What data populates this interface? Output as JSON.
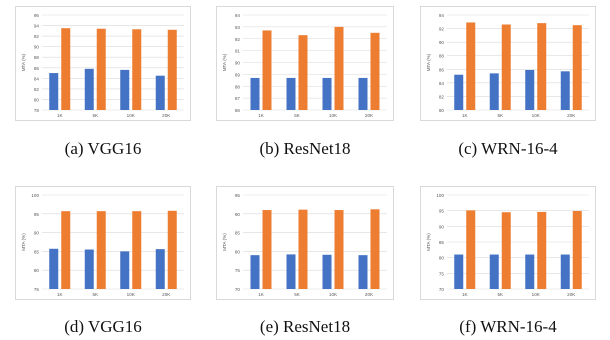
{
  "colors": {
    "series_a": "#4472c4",
    "series_b": "#ed7d31",
    "grid": "#d9d9d9",
    "tick": "#595959"
  },
  "chart_data": [
    {
      "type": "bar",
      "caption": "(a)  VGG16",
      "ylabel": "MTA (%)",
      "categories": [
        "1K",
        "5K",
        "10K",
        "20K"
      ],
      "ylim": [
        78,
        96
      ],
      "yticks": [
        78,
        80,
        82,
        84,
        86,
        88,
        90,
        92,
        94,
        96
      ],
      "series": [
        {
          "values": [
            85.0,
            85.8,
            85.6,
            84.5
          ]
        },
        {
          "values": [
            93.5,
            93.4,
            93.3,
            93.2
          ]
        }
      ]
    },
    {
      "type": "bar",
      "caption": "(b)  ResNet18",
      "ylabel": "MTA (%)",
      "categories": [
        "1K",
        "5K",
        "10K",
        "20K"
      ],
      "ylim": [
        86,
        94
      ],
      "yticks": [
        86,
        87,
        88,
        89,
        90,
        91,
        92,
        93,
        94
      ],
      "series": [
        {
          "values": [
            88.7,
            88.7,
            88.7,
            88.7
          ]
        },
        {
          "values": [
            92.7,
            92.3,
            93.0,
            92.5
          ]
        }
      ]
    },
    {
      "type": "bar",
      "caption": "(c)  WRN-16-4",
      "ylabel": "MTA (%)",
      "categories": [
        "1K",
        "5K",
        "10K",
        "20K"
      ],
      "ylim": [
        80,
        94
      ],
      "yticks": [
        80,
        82,
        84,
        86,
        88,
        90,
        92,
        94
      ],
      "series": [
        {
          "values": [
            85.2,
            85.4,
            85.9,
            85.7
          ]
        },
        {
          "values": [
            92.9,
            92.6,
            92.8,
            92.5
          ]
        }
      ]
    },
    {
      "type": "bar",
      "caption": "(d)  VGG16",
      "ylabel": "MTA (%)",
      "categories": [
        "1K",
        "5K",
        "10K",
        "20K"
      ],
      "ylim": [
        75,
        100
      ],
      "yticks": [
        75,
        80,
        85,
        90,
        95,
        100
      ],
      "series": [
        {
          "values": [
            85.7,
            85.5,
            85.0,
            85.6
          ]
        },
        {
          "values": [
            95.7,
            95.7,
            95.7,
            95.8
          ]
        }
      ]
    },
    {
      "type": "bar",
      "caption": "(e)  ResNet18",
      "ylabel": "MTA (%)",
      "categories": [
        "1K",
        "5K",
        "10K",
        "20K"
      ],
      "ylim": [
        70,
        95
      ],
      "yticks": [
        70,
        75,
        80,
        85,
        90,
        95
      ],
      "series": [
        {
          "values": [
            79.0,
            79.2,
            79.1,
            79.0
          ]
        },
        {
          "values": [
            91.0,
            91.1,
            91.0,
            91.2
          ]
        }
      ]
    },
    {
      "type": "bar",
      "caption": "(f)  WRN-16-4",
      "ylabel": "MTA (%)",
      "categories": [
        "1K",
        "5K",
        "10K",
        "20K"
      ],
      "ylim": [
        70,
        100
      ],
      "yticks": [
        70,
        75,
        80,
        85,
        90,
        95,
        100
      ],
      "series": [
        {
          "values": [
            81.0,
            81.0,
            81.0,
            81.0
          ]
        },
        {
          "values": [
            95.1,
            94.5,
            94.6,
            94.9
          ]
        }
      ]
    }
  ]
}
